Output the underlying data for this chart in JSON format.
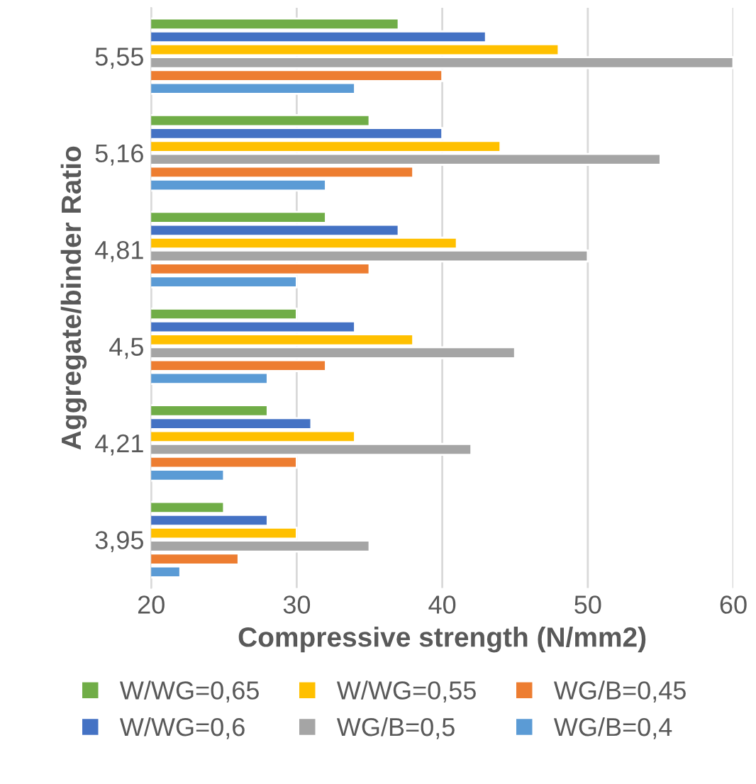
{
  "chart_data": {
    "type": "bar",
    "orientation": "horizontal",
    "xlabel": "Compressive strength (N/mm2)",
    "ylabel": "Aggregate/binder Ratio",
    "categories": [
      "5,55",
      "5,16",
      "4,81",
      "4,5",
      "4,21",
      "3,95"
    ],
    "series": [
      {
        "name": "W/WG=0,65",
        "color": "#70ad47",
        "values": [
          37,
          35,
          32,
          30,
          28,
          25
        ]
      },
      {
        "name": "W/WG=0,6",
        "color": "#4472c4",
        "values": [
          43,
          40,
          37,
          34,
          31,
          28
        ]
      },
      {
        "name": "W/WG=0,55",
        "color": "#ffc000",
        "values": [
          48,
          44,
          41,
          38,
          34,
          30
        ]
      },
      {
        "name": "WG/B=0,5",
        "color": "#a5a5a5",
        "values": [
          60,
          55,
          50,
          45,
          42,
          35
        ]
      },
      {
        "name": "WG/B=0,45",
        "color": "#ed7d31",
        "values": [
          40,
          38,
          35,
          32,
          30,
          26
        ]
      },
      {
        "name": "WG/B=0,4",
        "color": "#5b9bd5",
        "values": [
          34,
          32,
          30,
          28,
          25,
          22
        ]
      }
    ],
    "xlim": [
      20,
      60
    ],
    "xticks": [
      20,
      30,
      40,
      50,
      60
    ],
    "grid": "x",
    "legend": "bottom"
  }
}
